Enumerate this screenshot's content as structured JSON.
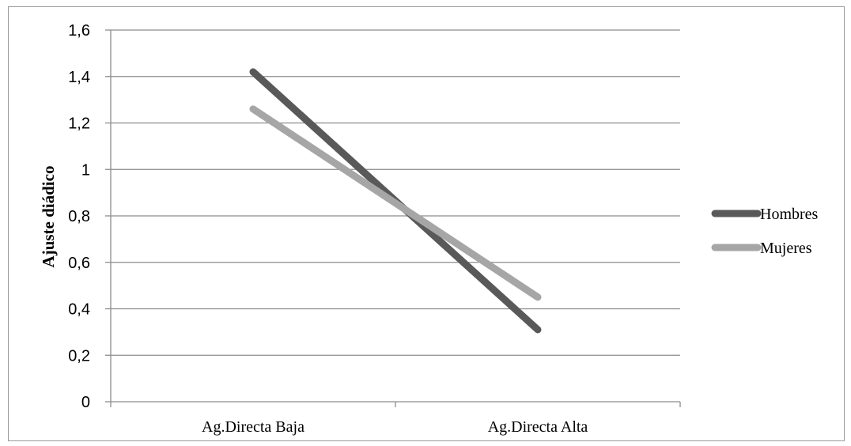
{
  "chart_data": {
    "type": "line",
    "categories": [
      "Ag.Directa Baja",
      "Ag.Directa Alta"
    ],
    "series": [
      {
        "name": "Hombres",
        "values": [
          1.42,
          0.31
        ],
        "color": "#595959"
      },
      {
        "name": "Mujeres",
        "values": [
          1.26,
          0.45
        ],
        "color": "#a6a6a6"
      }
    ],
    "ylabel": "Ajuste diádico",
    "xlabel": "",
    "ylim": [
      0,
      1.6
    ],
    "yticks": [
      "0",
      "0,2",
      "0,4",
      "0,6",
      "0,8",
      "1",
      "1,2",
      "1,4",
      "1,6"
    ],
    "grid": true,
    "legend_position": "right"
  }
}
